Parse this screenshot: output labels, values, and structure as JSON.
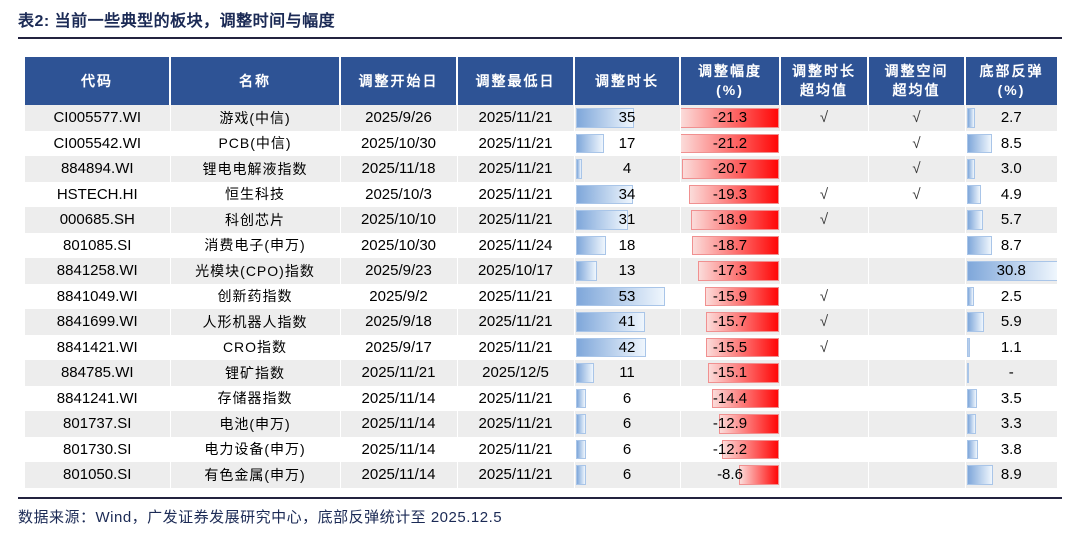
{
  "title": "表2:  当前一些典型的板块，调整时间与幅度",
  "footer": "数据来源：Wind，广发证券发展研究中心，底部反弹统计至 2025.12.5",
  "colors": {
    "header_bg": "#2E5395",
    "row_alt": "#EDEDED",
    "title_text": "#1B2A55",
    "bar_blue_start": "#7FA7DA",
    "bar_blue_border": "#A9C5E8",
    "bar_red_end": "#FF0707",
    "bar_red_border": "#F09090"
  },
  "table": {
    "headers": [
      "代码",
      "名称",
      "调整开始日",
      "调整最低日",
      "调整时长",
      "调整幅度\n(%)",
      "调整时长\n超均值",
      "调整空间\n超均值",
      "底部反弹\n(%)"
    ],
    "scale": {
      "duration_max": 53,
      "duration_bar_cap_pct": 85,
      "drawdown_max": 21.3,
      "rebound_max": 30.8
    },
    "check_mark": "√",
    "rows": [
      {
        "code": "CI005577.WI",
        "name": "游戏(中信)",
        "start": "2025/9/26",
        "low": "2025/11/21",
        "duration": "35",
        "drawdown": "-21.3",
        "dur_above": "√",
        "space_above": "√",
        "rebound": "2.7"
      },
      {
        "code": "CI005542.WI",
        "name": "PCB(中信)",
        "start": "2025/10/30",
        "low": "2025/11/21",
        "duration": "17",
        "drawdown": "-21.2",
        "dur_above": "",
        "space_above": "√",
        "rebound": "8.5"
      },
      {
        "code": "884894.WI",
        "name": "锂电电解液指数",
        "start": "2025/11/18",
        "low": "2025/11/21",
        "duration": "4",
        "drawdown": "-20.7",
        "dur_above": "",
        "space_above": "√",
        "rebound": "3.0"
      },
      {
        "code": "HSTECH.HI",
        "name": "恒生科技",
        "start": "2025/10/3",
        "low": "2025/11/21",
        "duration": "34",
        "drawdown": "-19.3",
        "dur_above": "√",
        "space_above": "√",
        "rebound": "4.9"
      },
      {
        "code": "000685.SH",
        "name": "科创芯片",
        "start": "2025/10/10",
        "low": "2025/11/21",
        "duration": "31",
        "drawdown": "-18.9",
        "dur_above": "√",
        "space_above": "",
        "rebound": "5.7"
      },
      {
        "code": "801085.SI",
        "name": "消费电子(申万)",
        "start": "2025/10/30",
        "low": "2025/11/24",
        "duration": "18",
        "drawdown": "-18.7",
        "dur_above": "",
        "space_above": "",
        "rebound": "8.7"
      },
      {
        "code": "8841258.WI",
        "name": "光模块(CPO)指数",
        "start": "2025/9/23",
        "low": "2025/10/17",
        "duration": "13",
        "drawdown": "-17.3",
        "dur_above": "",
        "space_above": "",
        "rebound": "30.8"
      },
      {
        "code": "8841049.WI",
        "name": "创新药指数",
        "start": "2025/9/2",
        "low": "2025/11/21",
        "duration": "53",
        "drawdown": "-15.9",
        "dur_above": "√",
        "space_above": "",
        "rebound": "2.5"
      },
      {
        "code": "8841699.WI",
        "name": "人形机器人指数",
        "start": "2025/9/18",
        "low": "2025/11/21",
        "duration": "41",
        "drawdown": "-15.7",
        "dur_above": "√",
        "space_above": "",
        "rebound": "5.9"
      },
      {
        "code": "8841421.WI",
        "name": "CRO指数",
        "start": "2025/9/17",
        "low": "2025/11/21",
        "duration": "42",
        "drawdown": "-15.5",
        "dur_above": "√",
        "space_above": "",
        "rebound": "1.1"
      },
      {
        "code": "884785.WI",
        "name": "锂矿指数",
        "start": "2025/11/21",
        "low": "2025/12/5",
        "duration": "11",
        "drawdown": "-15.1",
        "dur_above": "",
        "space_above": "",
        "rebound": "-"
      },
      {
        "code": "8841241.WI",
        "name": "存储器指数",
        "start": "2025/11/14",
        "low": "2025/11/21",
        "duration": "6",
        "drawdown": "-14.4",
        "dur_above": "",
        "space_above": "",
        "rebound": "3.5"
      },
      {
        "code": "801737.SI",
        "name": "电池(申万)",
        "start": "2025/11/14",
        "low": "2025/11/21",
        "duration": "6",
        "drawdown": "-12.9",
        "dur_above": "",
        "space_above": "",
        "rebound": "3.3"
      },
      {
        "code": "801730.SI",
        "name": "电力设备(申万)",
        "start": "2025/11/14",
        "low": "2025/11/21",
        "duration": "6",
        "drawdown": "-12.2",
        "dur_above": "",
        "space_above": "",
        "rebound": "3.8"
      },
      {
        "code": "801050.SI",
        "name": "有色金属(申万)",
        "start": "2025/11/14",
        "low": "2025/11/21",
        "duration": "6",
        "drawdown": "-8.6",
        "dur_above": "",
        "space_above": "",
        "rebound": "8.9"
      }
    ]
  }
}
